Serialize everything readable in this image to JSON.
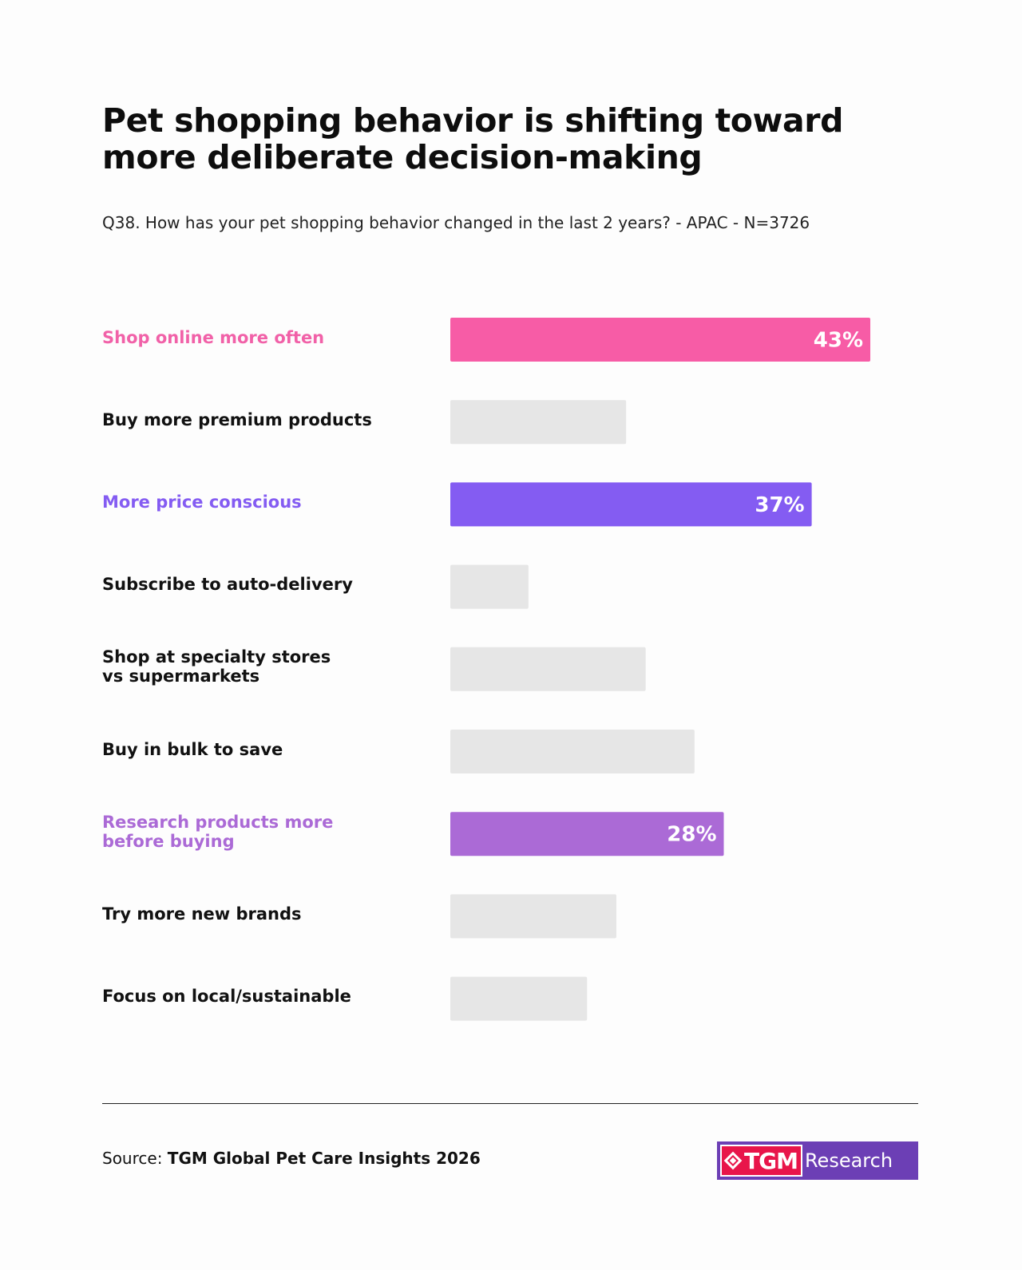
{
  "chart_data": {
    "type": "bar",
    "orientation": "horizontal",
    "title": [
      "Pet shopping behavior is shifting toward",
      "more deliberate decision-making"
    ],
    "subtitle": "Q38. How has your pet shopping behavior changed in the last 2 years? - APAC - N=3726",
    "categories": [
      [
        "Shop online more often"
      ],
      [
        "Buy more premium products"
      ],
      [
        "More price conscious"
      ],
      [
        "Subscribe to auto-delivery"
      ],
      [
        "Shop at specialty stores",
        "vs supermarkets"
      ],
      [
        "Buy in bulk to save"
      ],
      [
        "Research products more",
        "before buying"
      ],
      [
        "Try more new brands"
      ],
      [
        "Focus on local/sustainable"
      ]
    ],
    "values": [
      43,
      18,
      37,
      8,
      20,
      25,
      28,
      17,
      14
    ],
    "data_labels": [
      "43%",
      "",
      "37%",
      "",
      "",
      "",
      "28%",
      "",
      ""
    ],
    "highlighted": [
      true,
      false,
      true,
      false,
      false,
      false,
      true,
      false,
      false
    ],
    "colors": [
      "#f75ca6",
      "#e6e6e6",
      "#845cf2",
      "#e6e6e6",
      "#e6e6e6",
      "#e6e6e6",
      "#ab6ad6",
      "#e6e6e6",
      "#e6e6e6"
    ],
    "label_colors": [
      "#f161a8",
      "#111111",
      "#845cf2",
      "#111111",
      "#111111",
      "#111111",
      "#ab6ad6",
      "#111111",
      "#111111"
    ],
    "xlim": [
      0,
      43
    ],
    "grid": false,
    "legend": "none"
  },
  "footer": {
    "source_prefix": "Source: ",
    "source_name": "TGM Global Pet Care Insights 2026"
  },
  "logo": {
    "tgm": "TGM",
    "research": "Research"
  }
}
